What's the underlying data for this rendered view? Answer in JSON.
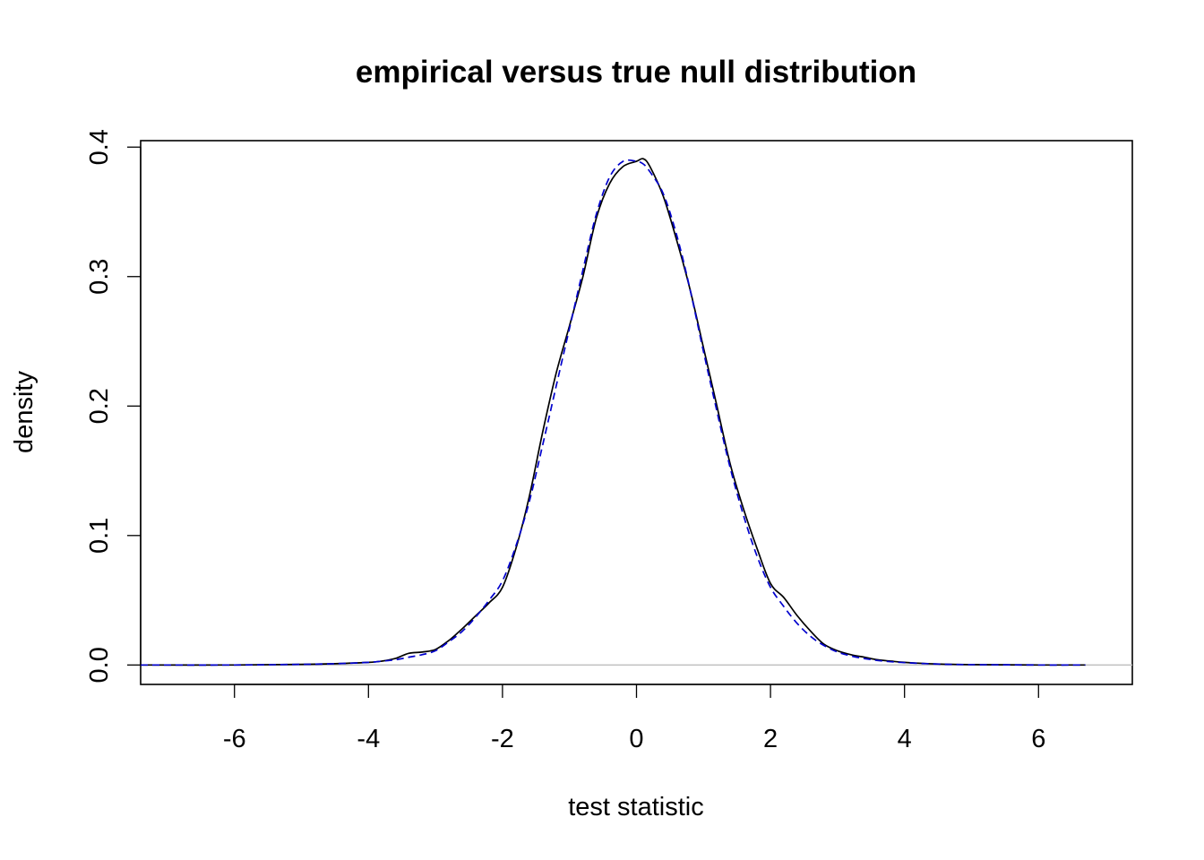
{
  "chart_data": {
    "type": "line",
    "title": "empirical versus true null distribution",
    "xlabel": "test statistic",
    "ylabel": "density",
    "xlim": [
      -7.4,
      7.4
    ],
    "ylim": [
      -0.015,
      0.405
    ],
    "xticks": [
      -6,
      -4,
      -2,
      0,
      2,
      4,
      6
    ],
    "yticks": [
      0.0,
      0.1,
      0.2,
      0.3,
      0.4
    ],
    "xtick_labels": [
      "-6",
      "-4",
      "-2",
      "0",
      "2",
      "4",
      "6"
    ],
    "ytick_labels": [
      "0.0",
      "0.1",
      "0.2",
      "0.3",
      "0.4"
    ],
    "grid": false,
    "legend": "none",
    "reference_line": {
      "y": 0,
      "color": "#bebebe"
    },
    "series": [
      {
        "style": "solid",
        "color": "#000000",
        "x": [
          -7.4,
          -6.0,
          -5.0,
          -4.5,
          -4.0,
          -3.8,
          -3.6,
          -3.4,
          -3.2,
          -3.0,
          -2.8,
          -2.6,
          -2.4,
          -2.2,
          -2.0,
          -1.8,
          -1.6,
          -1.4,
          -1.2,
          -1.0,
          -0.8,
          -0.6,
          -0.4,
          -0.2,
          0.0,
          0.1,
          0.2,
          0.4,
          0.6,
          0.8,
          1.0,
          1.2,
          1.4,
          1.6,
          1.8,
          2.0,
          2.2,
          2.4,
          2.6,
          2.8,
          3.0,
          3.2,
          3.4,
          3.6,
          3.8,
          4.0,
          4.5,
          5.0,
          6.0,
          6.7
        ],
        "y": [
          0.0,
          0.0,
          0.0005,
          0.001,
          0.002,
          0.003,
          0.005,
          0.009,
          0.01,
          0.012,
          0.019,
          0.028,
          0.038,
          0.048,
          0.06,
          0.09,
          0.13,
          0.18,
          0.225,
          0.262,
          0.3,
          0.345,
          0.372,
          0.385,
          0.389,
          0.391,
          0.385,
          0.362,
          0.328,
          0.29,
          0.245,
          0.2,
          0.155,
          0.12,
          0.09,
          0.063,
          0.052,
          0.038,
          0.026,
          0.016,
          0.011,
          0.008,
          0.006,
          0.004,
          0.003,
          0.002,
          0.0008,
          0.0003,
          0.0,
          0.0
        ]
      },
      {
        "style": "dashed",
        "color": "#0000cd",
        "x": [
          -7.4,
          -6.0,
          -5.0,
          -4.5,
          -4.0,
          -3.8,
          -3.6,
          -3.4,
          -3.2,
          -3.0,
          -2.8,
          -2.6,
          -2.4,
          -2.2,
          -2.0,
          -1.8,
          -1.6,
          -1.4,
          -1.2,
          -1.0,
          -0.8,
          -0.6,
          -0.4,
          -0.2,
          0.0,
          0.1,
          0.2,
          0.4,
          0.6,
          0.8,
          1.0,
          1.2,
          1.4,
          1.6,
          1.8,
          2.0,
          2.2,
          2.4,
          2.6,
          2.8,
          3.0,
          3.2,
          3.4,
          3.6,
          3.8,
          4.0,
          4.5,
          5.0,
          6.0,
          6.7
        ],
        "y": [
          0.0,
          0.0,
          0.0005,
          0.001,
          0.002,
          0.003,
          0.004,
          0.006,
          0.008,
          0.011,
          0.018,
          0.026,
          0.037,
          0.05,
          0.065,
          0.092,
          0.126,
          0.17,
          0.215,
          0.26,
          0.305,
          0.348,
          0.377,
          0.389,
          0.389,
          0.387,
          0.381,
          0.364,
          0.332,
          0.29,
          0.242,
          0.196,
          0.152,
          0.115,
          0.084,
          0.06,
          0.045,
          0.032,
          0.022,
          0.015,
          0.01,
          0.007,
          0.005,
          0.0035,
          0.0025,
          0.0018,
          0.0007,
          0.0003,
          0.0,
          0.0
        ]
      }
    ]
  }
}
